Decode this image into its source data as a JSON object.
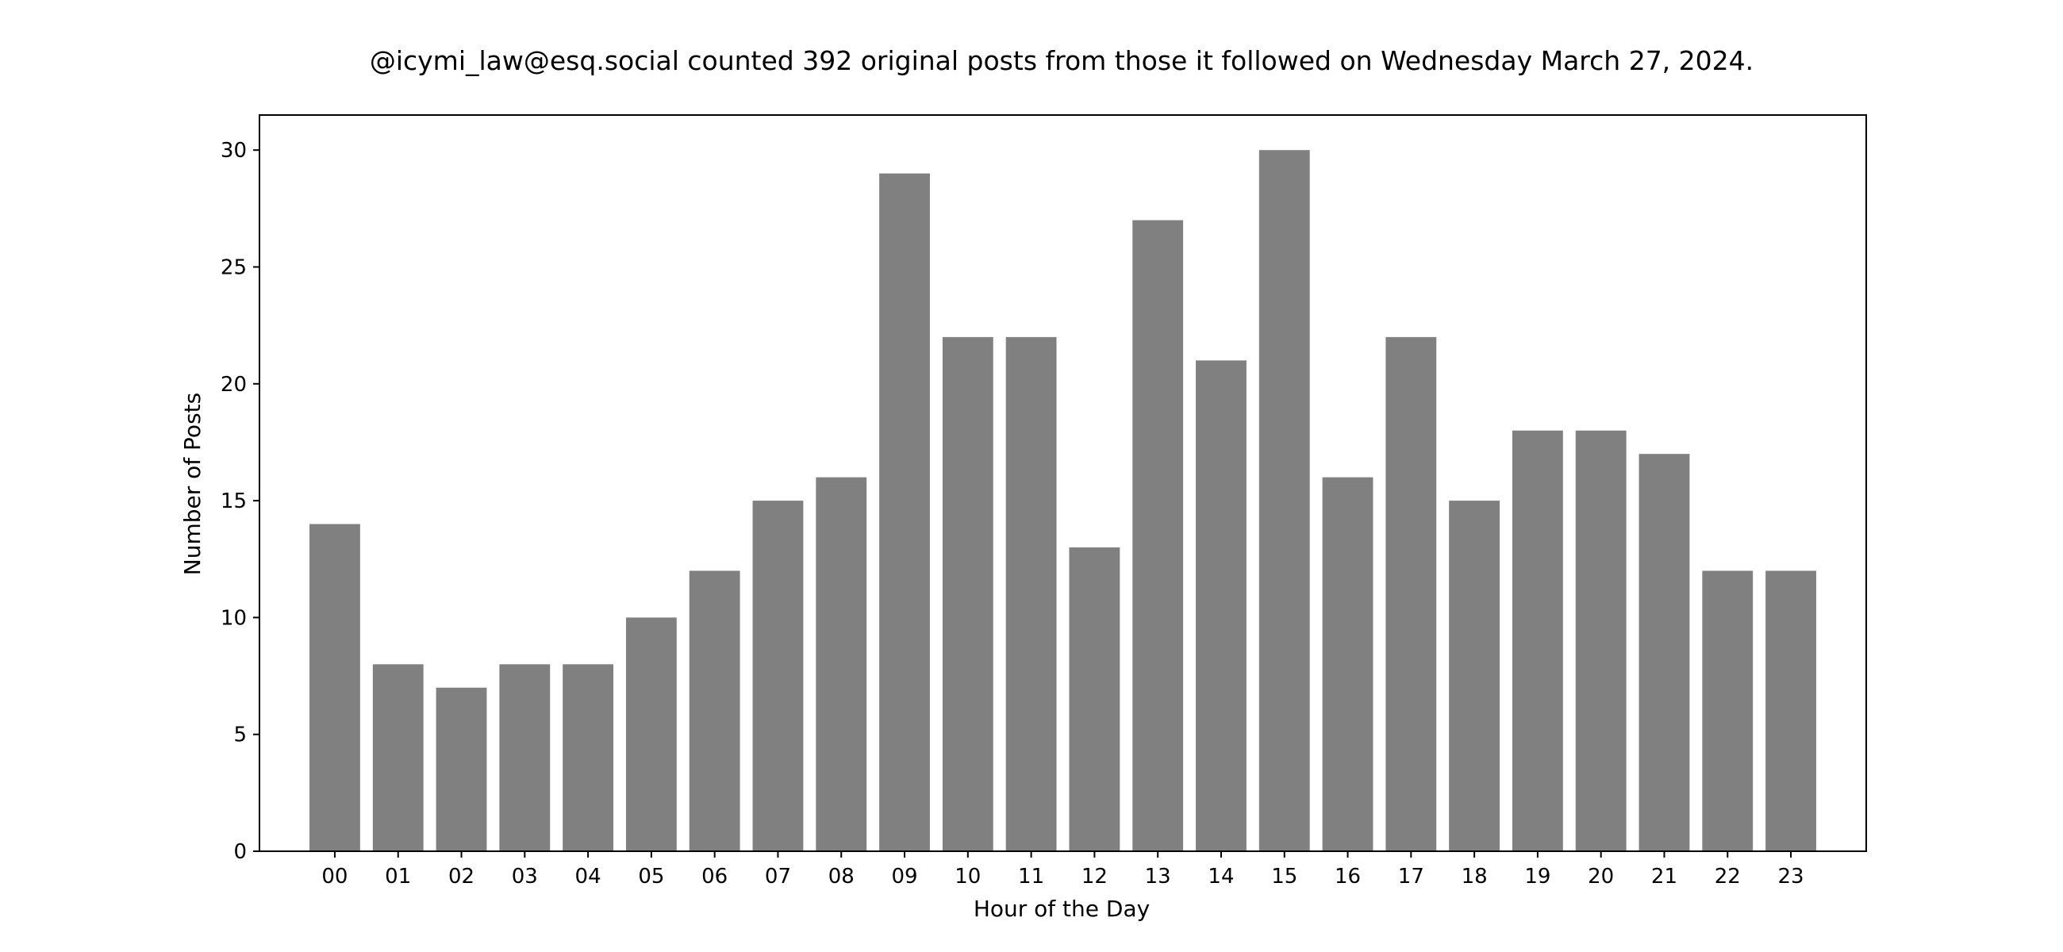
{
  "chart_data": {
    "type": "bar",
    "title": "@icymi_law@esq.social counted 392 original posts from those it followed on Wednesday March 27, 2024.",
    "xlabel": "Hour of the Day",
    "ylabel": "Number of Posts",
    "categories": [
      "00",
      "01",
      "02",
      "03",
      "04",
      "05",
      "06",
      "07",
      "08",
      "09",
      "10",
      "11",
      "12",
      "13",
      "14",
      "15",
      "16",
      "17",
      "18",
      "19",
      "20",
      "21",
      "22",
      "23"
    ],
    "values": [
      14,
      8,
      7,
      8,
      8,
      10,
      12,
      15,
      16,
      29,
      22,
      22,
      13,
      27,
      21,
      30,
      16,
      22,
      15,
      18,
      18,
      17,
      12,
      12
    ],
    "ylim": [
      0,
      31.5
    ],
    "yticks": [
      0,
      5,
      10,
      15,
      20,
      25,
      30
    ],
    "grid": false,
    "legend": "none",
    "bar_color": "#808080"
  }
}
